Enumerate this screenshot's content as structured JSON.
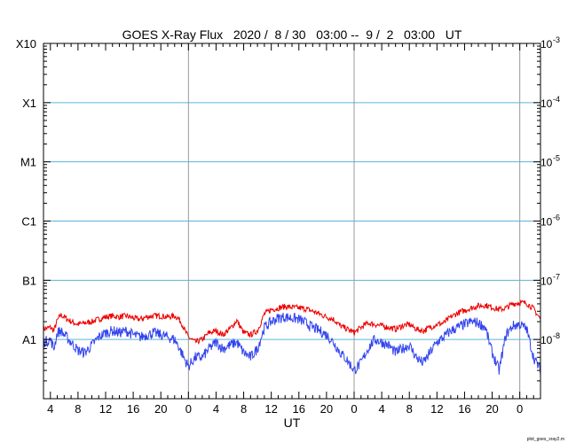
{
  "chart_data": {
    "type": "line",
    "title": "GOES X-Ray Flux   2020 /  8 / 30   03:00 --  9 /  2   03:00   UT",
    "xlabel": "UT",
    "ylabel": "",
    "x_unit": "hours from 2020-08-30 03:00 UT",
    "xlim": [
      0,
      72
    ],
    "x_tick_labels": [
      {
        "x": 1,
        "label": "4"
      },
      {
        "x": 5,
        "label": "8"
      },
      {
        "x": 9,
        "label": "12"
      },
      {
        "x": 13,
        "label": "16"
      },
      {
        "x": 17,
        "label": "20"
      },
      {
        "x": 21,
        "label": "0"
      },
      {
        "x": 25,
        "label": "4"
      },
      {
        "x": 29,
        "label": "8"
      },
      {
        "x": 33,
        "label": "12"
      },
      {
        "x": 37,
        "label": "16"
      },
      {
        "x": 41,
        "label": "20"
      },
      {
        "x": 45,
        "label": "0"
      },
      {
        "x": 49,
        "label": "4"
      },
      {
        "x": 53,
        "label": "8"
      },
      {
        "x": 57,
        "label": "12"
      },
      {
        "x": 61,
        "label": "16"
      },
      {
        "x": 65,
        "label": "20"
      },
      {
        "x": 69,
        "label": "0"
      }
    ],
    "day_boundaries": [
      21,
      45,
      69
    ],
    "y_scale": "log",
    "ylim": [
      1e-09,
      0.001
    ],
    "left_tick_labels": [
      {
        "y": 1e-08,
        "label": "A1"
      },
      {
        "y": 1e-07,
        "label": "B1"
      },
      {
        "y": 1e-06,
        "label": "C1"
      },
      {
        "y": 1e-05,
        "label": "M1"
      },
      {
        "y": 0.0001,
        "label": "X1"
      },
      {
        "y": 0.001,
        "label": "X10"
      }
    ],
    "right_tick_labels": [
      {
        "y": 1e-08,
        "base": "10",
        "exp": "-8"
      },
      {
        "y": 1e-07,
        "base": "10",
        "exp": "-7"
      },
      {
        "y": 1e-06,
        "base": "10",
        "exp": "-6"
      },
      {
        "y": 1e-05,
        "base": "10",
        "exp": "-5"
      },
      {
        "y": 0.0001,
        "base": "10",
        "exp": "-4"
      },
      {
        "y": 0.001,
        "base": "10",
        "exp": "-3"
      }
    ],
    "class_lines": [
      1e-08,
      1e-07,
      1e-06,
      1e-05,
      0.0001
    ],
    "grid": true,
    "series": [
      {
        "color": "#ee0000",
        "x": [
          0,
          1,
          1.5,
          2,
          2.5,
          3,
          4,
          5,
          6,
          7,
          8,
          9,
          10,
          11,
          12,
          13,
          14,
          15,
          16,
          17,
          18,
          19,
          19.5,
          20,
          20.5,
          21,
          22,
          23,
          24,
          25,
          26,
          27,
          28,
          29,
          30,
          31,
          32,
          33,
          34,
          35,
          36,
          37,
          38,
          39,
          40,
          41,
          42,
          43,
          44,
          45,
          46,
          47,
          48,
          49,
          50,
          51,
          52,
          53,
          54,
          55,
          56,
          57,
          58,
          59,
          60,
          61,
          62,
          63,
          64,
          65,
          66,
          67,
          68,
          69,
          70,
          71,
          72
        ],
        "y": [
          1.5e-08,
          1.6e-08,
          1.4e-08,
          2.1e-08,
          2.6e-08,
          2.4e-08,
          2e-08,
          1.8e-08,
          1.9e-08,
          2e-08,
          2.2e-08,
          2.4e-08,
          2.5e-08,
          2.4e-08,
          2.5e-08,
          2.3e-08,
          2.2e-08,
          2.4e-08,
          2.5e-08,
          2.5e-08,
          2.4e-08,
          2.5e-08,
          2.3e-08,
          1.9e-08,
          1.4e-08,
          1.1e-08,
          9e-09,
          1e-08,
          1.3e-08,
          1.4e-08,
          1.2e-08,
          1.5e-08,
          2.1e-08,
          1.3e-08,
          1.2e-08,
          1.4e-08,
          2.7e-08,
          3.2e-08,
          3.4e-08,
          3.6e-08,
          3.5e-08,
          3.4e-08,
          3.3e-08,
          3e-08,
          2.7e-08,
          2.4e-08,
          2.2e-08,
          1.7e-08,
          1.5e-08,
          1.3e-08,
          1.6e-08,
          1.9e-08,
          1.8e-08,
          1.7e-08,
          1.6e-08,
          1.5e-08,
          1.7e-08,
          1.8e-08,
          1.5e-08,
          1.4e-08,
          1.6e-08,
          1.8e-08,
          1.9e-08,
          2.4e-08,
          2.8e-08,
          3.1e-08,
          3.4e-08,
          3.7e-08,
          3.8e-08,
          3.5e-08,
          3.2e-08,
          3.4e-08,
          4e-08,
          4.2e-08,
          4.1e-08,
          3.3e-08,
          2.2e-08
        ]
      },
      {
        "color": "#3344ee",
        "x": [
          0,
          1,
          1.5,
          2,
          2.5,
          3,
          4,
          5,
          6,
          7,
          8,
          9,
          10,
          11,
          12,
          13,
          14,
          15,
          16,
          17,
          18,
          19,
          19.5,
          20,
          20.5,
          21,
          22,
          23,
          24,
          25,
          26,
          27,
          28,
          29,
          30,
          31,
          32,
          33,
          34,
          35,
          36,
          37,
          38,
          39,
          40,
          41,
          42,
          43,
          44,
          45,
          46,
          47,
          48,
          49,
          50,
          51,
          52,
          53,
          54,
          55,
          56,
          57,
          58,
          59,
          60,
          61,
          62,
          63,
          64,
          65,
          66,
          67,
          68,
          69,
          70,
          71,
          72
        ],
        "y": [
          9e-09,
          1e-08,
          7e-09,
          1.3e-08,
          1.4e-08,
          1.2e-08,
          9e-09,
          6.5e-09,
          6e-09,
          8e-09,
          1.1e-08,
          1.3e-08,
          1.4e-08,
          1.3e-08,
          1.4e-08,
          1.2e-08,
          1.1e-08,
          1.2e-08,
          1.3e-08,
          1.2e-08,
          1.1e-08,
          1e-08,
          8e-09,
          6e-09,
          4.5e-09,
          3.5e-09,
          5e-09,
          5e-09,
          7e-09,
          9e-09,
          7e-09,
          8e-09,
          9e-09,
          6e-09,
          5e-09,
          7e-09,
          1.6e-08,
          2e-08,
          2.3e-08,
          2.4e-08,
          2.3e-08,
          2.2e-08,
          1.9e-08,
          1.6e-08,
          1.4e-08,
          1.2e-08,
          9e-09,
          6e-09,
          4.5e-09,
          3e-09,
          4e-09,
          7e-09,
          1e-08,
          9e-09,
          8e-09,
          6e-09,
          7e-09,
          8e-09,
          5e-09,
          4e-09,
          6e-09,
          9e-09,
          1.1e-08,
          1.4e-08,
          1.6e-08,
          1.8e-08,
          2e-08,
          1.9e-08,
          1.6e-08,
          6e-09,
          3e-09,
          1.2e-08,
          1.7e-08,
          1.8e-08,
          1.5e-08,
          5e-09,
          3e-09
        ]
      }
    ]
  },
  "footer": {
    "credit": "plot_goes_xray2.m"
  }
}
